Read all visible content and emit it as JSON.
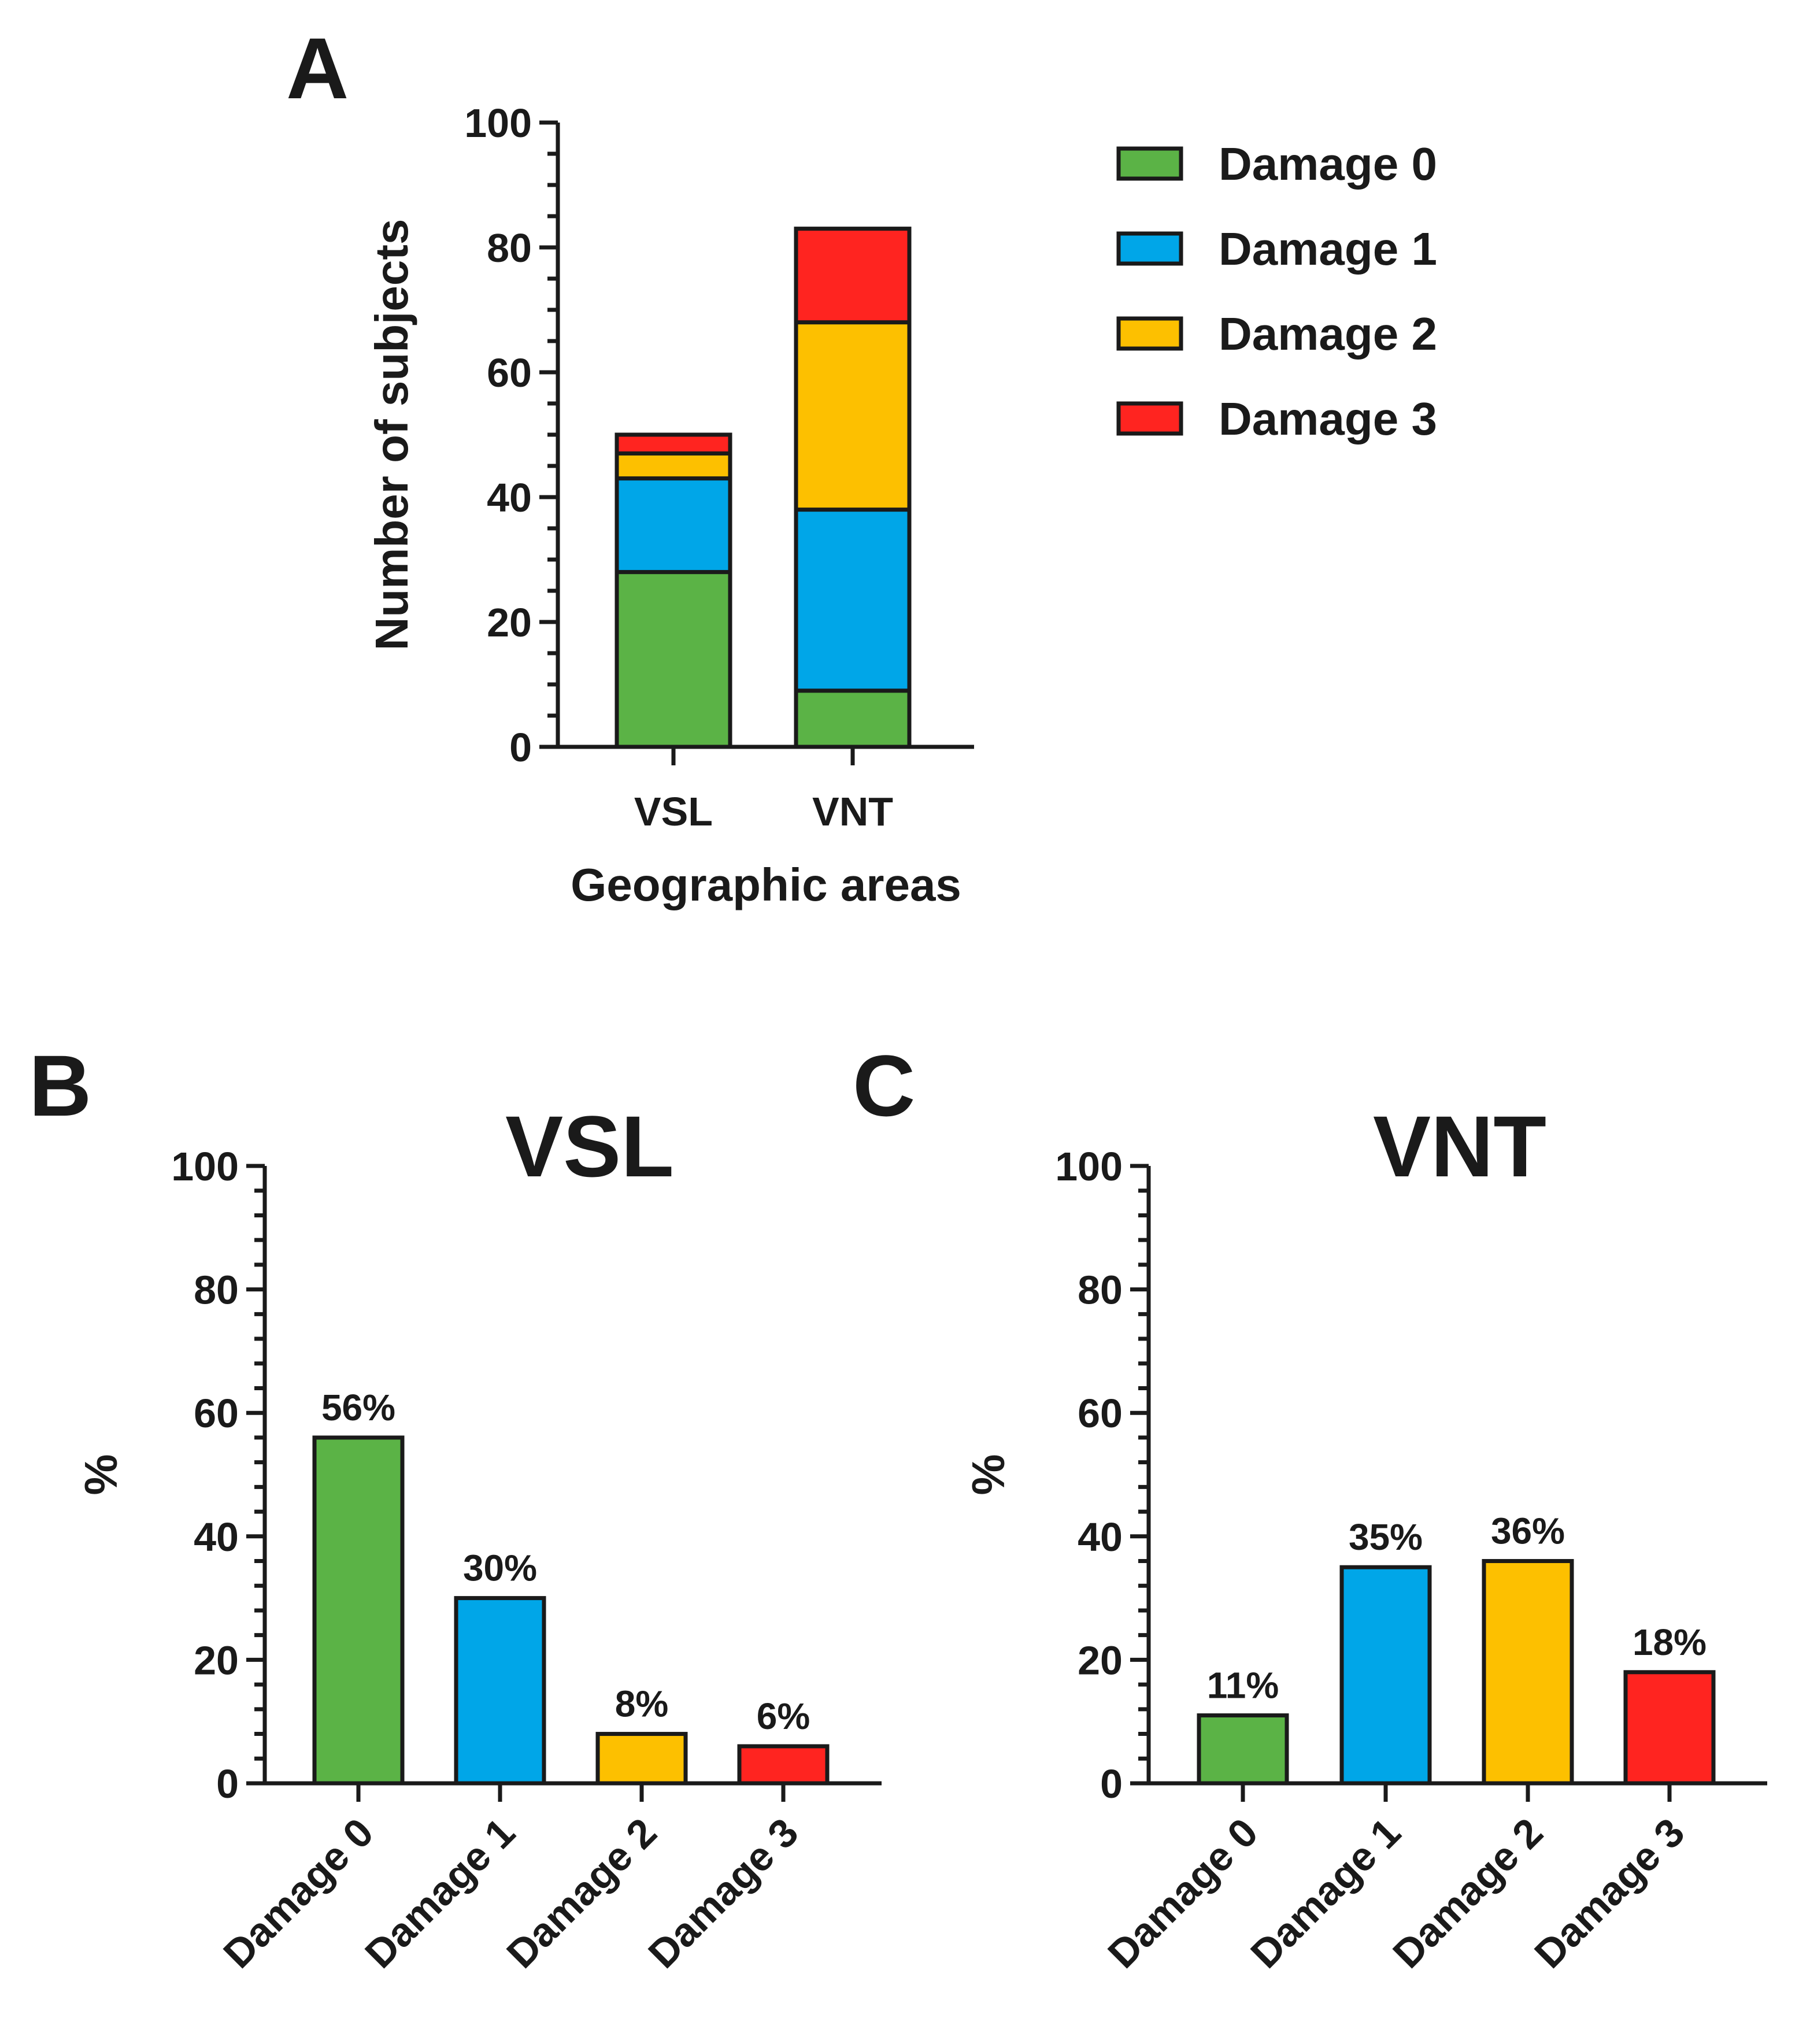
{
  "chart_data": [
    {
      "panel": "A",
      "type": "bar",
      "stacked": true,
      "title": "",
      "categories": [
        "VSL",
        "VNT"
      ],
      "xlabel": "Geographic areas",
      "ylabel": "Number of subjects",
      "ylim": [
        0,
        100
      ],
      "yticks": [
        0,
        20,
        40,
        60,
        80,
        100
      ],
      "legend_position": "right",
      "series": [
        {
          "name": "Damage 0",
          "color": "#5bb346",
          "values": [
            28,
            9
          ]
        },
        {
          "name": "Damage 1",
          "color": "#00a6e8",
          "values": [
            15,
            29
          ]
        },
        {
          "name": "Damage 2",
          "color": "#fdc000",
          "values": [
            4,
            30
          ]
        },
        {
          "name": "Damage 3",
          "color": "#ff2420",
          "values": [
            3,
            15
          ]
        }
      ]
    },
    {
      "panel": "B",
      "type": "bar",
      "title": "VSL",
      "categories": [
        "Damage 0",
        "Damage 1",
        "Damage 2",
        "Damage 3"
      ],
      "values": [
        56,
        30,
        8,
        6
      ],
      "data_labels": [
        "56%",
        "30%",
        "8%",
        "6%"
      ],
      "colors": [
        "#5bb346",
        "#00a6e8",
        "#fdc000",
        "#ff2420"
      ],
      "xlabel": "",
      "ylabel": "%",
      "ylim": [
        0,
        100
      ],
      "yticks": [
        0,
        20,
        40,
        60,
        80,
        100
      ]
    },
    {
      "panel": "C",
      "type": "bar",
      "title": "VNT",
      "categories": [
        "Damage 0",
        "Damage 1",
        "Damage 2",
        "Damage 3"
      ],
      "values": [
        11,
        35,
        36,
        18
      ],
      "data_labels": [
        "11%",
        "35%",
        "36%",
        "18%"
      ],
      "colors": [
        "#5bb346",
        "#00a6e8",
        "#fdc000",
        "#ff2420"
      ],
      "xlabel": "",
      "ylabel": "%",
      "ylim": [
        0,
        100
      ],
      "yticks": [
        0,
        20,
        40,
        60,
        80,
        100
      ]
    }
  ]
}
